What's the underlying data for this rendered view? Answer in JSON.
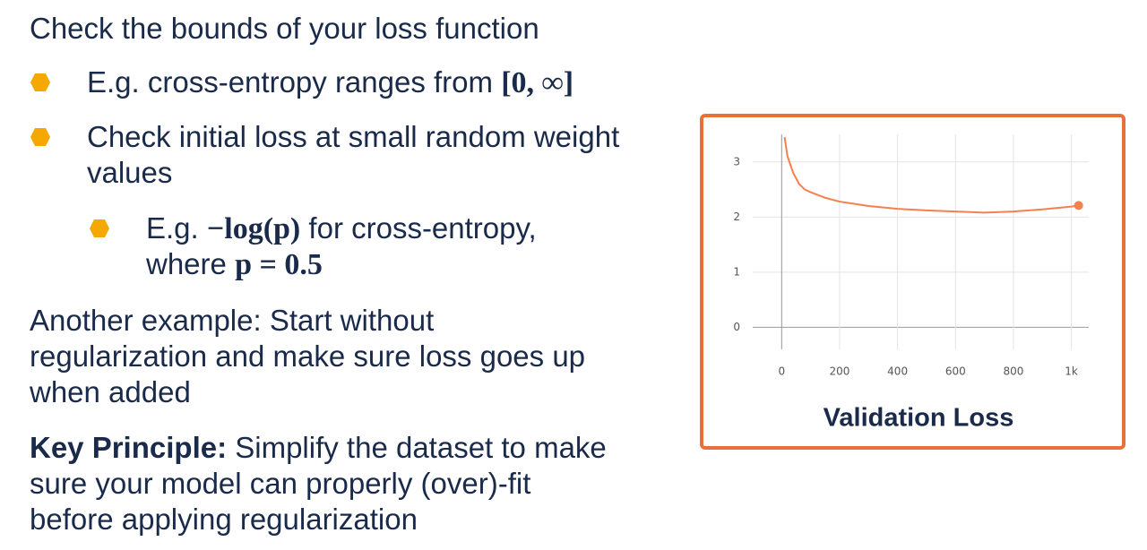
{
  "slide": {
    "items": [
      {
        "level": 0,
        "lines": [
          [
            "Check the bounds of your loss function"
          ]
        ]
      },
      {
        "level": 1,
        "lines": [
          [
            "E.g. cross-entropy ranges from ",
            {
              "math": "[0, ∞]"
            }
          ]
        ]
      },
      {
        "level": 1,
        "lines": [
          [
            "Check initial loss at small random weight"
          ],
          [
            "values"
          ]
        ]
      },
      {
        "level": 2,
        "lines": [
          [
            "E.g. ",
            {
              "math": "−log(p)"
            },
            " for cross-entropy,"
          ],
          [
            "where ",
            {
              "math": "p = 0.5"
            }
          ]
        ]
      },
      {
        "level": 0,
        "lines": [
          [
            "Another example: Start without"
          ],
          [
            "regularization and make sure loss goes up"
          ],
          [
            "when added"
          ]
        ]
      },
      {
        "level": 0,
        "lines": [
          [
            {
              "bold": "Key Principle:"
            },
            " Simplify the dataset to make"
          ],
          [
            "sure your model can properly (over)-fit"
          ],
          [
            "before applying regularization"
          ]
        ]
      }
    ]
  },
  "chart_data": {
    "type": "line",
    "title": "Validation Loss",
    "color": "#f4804f",
    "x": [
      10,
      20,
      40,
      60,
      80,
      100,
      150,
      200,
      250,
      300,
      400,
      500,
      600,
      700,
      800,
      900,
      1000,
      1025
    ],
    "values": [
      3.45,
      3.1,
      2.8,
      2.6,
      2.5,
      2.45,
      2.35,
      2.28,
      2.24,
      2.2,
      2.15,
      2.12,
      2.1,
      2.08,
      2.1,
      2.14,
      2.19,
      2.21
    ],
    "xlim": [
      -100,
      1060
    ],
    "ylim": [
      -0.4,
      3.5
    ],
    "xticks": [
      0,
      200,
      400,
      600,
      800,
      {
        "value": 1000,
        "label": "1k"
      }
    ],
    "yticks": [
      0,
      1,
      2,
      3
    ],
    "grid": true
  }
}
